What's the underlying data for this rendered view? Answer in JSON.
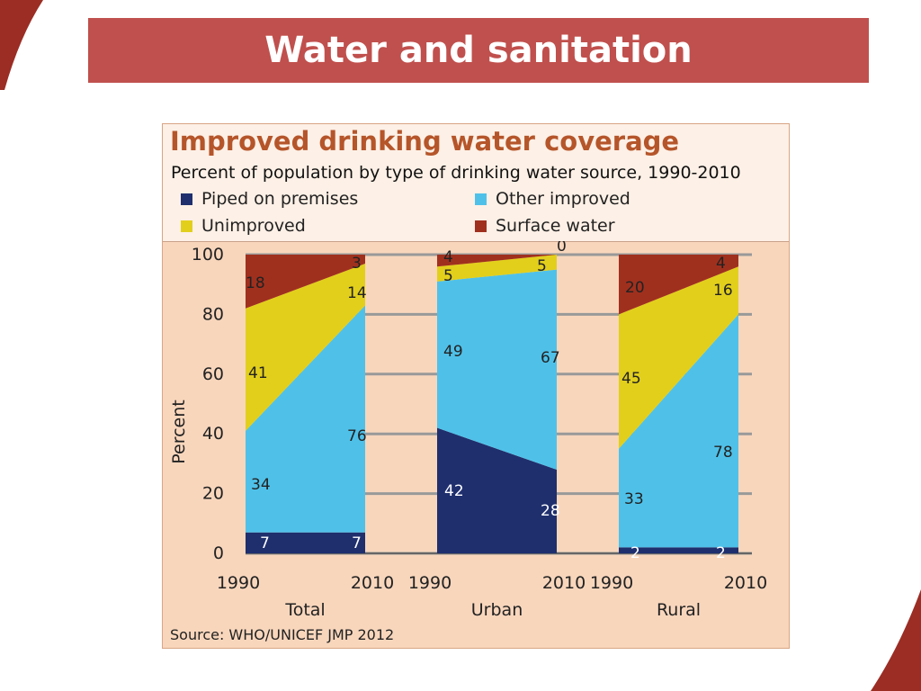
{
  "slide": {
    "title": "Water and sanitation"
  },
  "figure": {
    "title": "Improved drinking water coverage",
    "subtitle": "Percent of population by type of drinking water source, 1990-2010",
    "source": "Source:  WHO/UNICEF JMP 2012"
  },
  "legend": [
    {
      "label": "Piped on premises",
      "color": "#1f2f6e"
    },
    {
      "label": "Other improved",
      "color": "#4fc1e9"
    },
    {
      "label": "Unimproved",
      "color": "#e2cf1c"
    },
    {
      "label": "Surface water",
      "color": "#a0301e"
    }
  ],
  "chart_data": {
    "type": "area",
    "title": "Improved drinking water coverage",
    "subtitle": "Percent of population by type of drinking water source, 1990-2010",
    "ylabel": "Percent",
    "ylim": [
      0,
      100
    ],
    "yticks": [
      0,
      20,
      40,
      60,
      80,
      100
    ],
    "grid": true,
    "stacked": true,
    "series_order": [
      "Piped on premises",
      "Other improved",
      "Unimproved",
      "Surface water"
    ],
    "panels": [
      {
        "name": "Total",
        "x": [
          "1990",
          "2010"
        ],
        "series": [
          {
            "name": "Piped on premises",
            "values": [
              7,
              7
            ]
          },
          {
            "name": "Other improved",
            "values": [
              34,
              76
            ]
          },
          {
            "name": "Unimproved",
            "values": [
              41,
              14
            ]
          },
          {
            "name": "Surface water",
            "values": [
              18,
              3
            ]
          }
        ]
      },
      {
        "name": "Urban",
        "x": [
          "1990",
          "2010"
        ],
        "series": [
          {
            "name": "Piped on premises",
            "values": [
              42,
              28
            ]
          },
          {
            "name": "Other improved",
            "values": [
              49,
              67
            ]
          },
          {
            "name": "Unimproved",
            "values": [
              5,
              5
            ]
          },
          {
            "name": "Surface water",
            "values": [
              4,
              0
            ]
          }
        ]
      },
      {
        "name": "Rural",
        "x": [
          "1990",
          "2010"
        ],
        "series": [
          {
            "name": "Piped on premises",
            "values": [
              2,
              2
            ]
          },
          {
            "name": "Other improved",
            "values": [
              33,
              78
            ]
          },
          {
            "name": "Unimproved",
            "values": [
              45,
              16
            ]
          },
          {
            "name": "Surface water",
            "values": [
              20,
              4
            ]
          }
        ]
      }
    ]
  }
}
